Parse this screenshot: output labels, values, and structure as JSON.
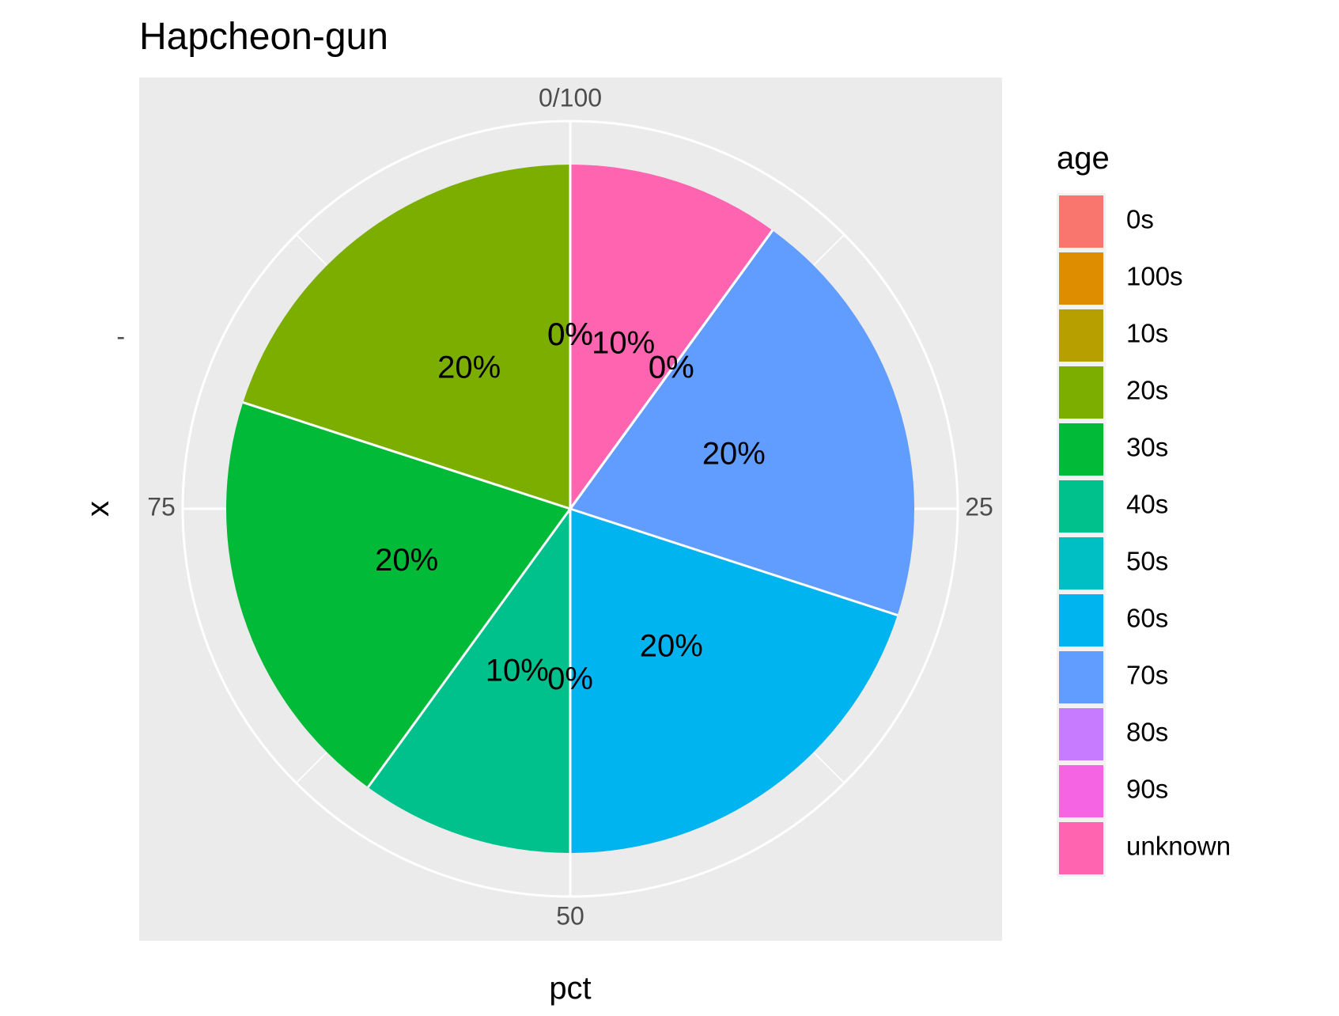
{
  "chart_data": {
    "type": "pie",
    "title": "Hapcheon-gun",
    "xlabel": "pct",
    "ylabel": "x",
    "angular_axis": {
      "range": [
        0,
        100
      ],
      "ticks": [
        {
          "value": 0,
          "label": "0/100"
        },
        {
          "value": 25,
          "label": "25"
        },
        {
          "value": 50,
          "label": "50"
        },
        {
          "value": 75,
          "label": "75"
        }
      ]
    },
    "radial_tick_label": "-",
    "legend": {
      "title": "age",
      "position": "right",
      "entries": [
        {
          "label": "0s",
          "color": "#F8766D"
        },
        {
          "label": "100s",
          "color": "#DE8C00"
        },
        {
          "label": "10s",
          "color": "#B79F00"
        },
        {
          "label": "20s",
          "color": "#7CAE00"
        },
        {
          "label": "30s",
          "color": "#00BA38"
        },
        {
          "label": "40s",
          "color": "#00C08B"
        },
        {
          "label": "50s",
          "color": "#00BFC4"
        },
        {
          "label": "60s",
          "color": "#00B4F0"
        },
        {
          "label": "70s",
          "color": "#619CFF"
        },
        {
          "label": "80s",
          "color": "#C77CFF"
        },
        {
          "label": "90s",
          "color": "#F564E3"
        },
        {
          "label": "unknown",
          "color": "#FF64B0"
        }
      ]
    },
    "slices": [
      {
        "category": "unknown",
        "value": 10,
        "label": "10%",
        "color": "#FF64B0"
      },
      {
        "category": "90s",
        "value": 0,
        "label": "0%",
        "color": "#F564E3"
      },
      {
        "category": "80s",
        "value": 0,
        "label": "0%",
        "color": "#C77CFF"
      },
      {
        "category": "70s",
        "value": 20,
        "label": "20%",
        "color": "#619CFF"
      },
      {
        "category": "60s",
        "value": 20,
        "label": "20%",
        "color": "#00B4F0"
      },
      {
        "category": "50s",
        "value": 0,
        "label": "0%",
        "color": "#00BFC4"
      },
      {
        "category": "40s",
        "value": 10,
        "label": "10%",
        "color": "#00C08B"
      },
      {
        "category": "30s",
        "value": 20,
        "label": "20%",
        "color": "#00BA38"
      },
      {
        "category": "20s",
        "value": 20,
        "label": "20%",
        "color": "#7CAE00"
      },
      {
        "category": "10s",
        "value": 0,
        "label": "0%",
        "color": "#B79F00"
      },
      {
        "category": "100s",
        "value": 0,
        "label": "0%",
        "color": "#DE8C00"
      },
      {
        "category": "0s",
        "value": 0,
        "label": "0%",
        "color": "#F8766D"
      }
    ],
    "panel_background": "#EBEBEB",
    "grid": true
  }
}
